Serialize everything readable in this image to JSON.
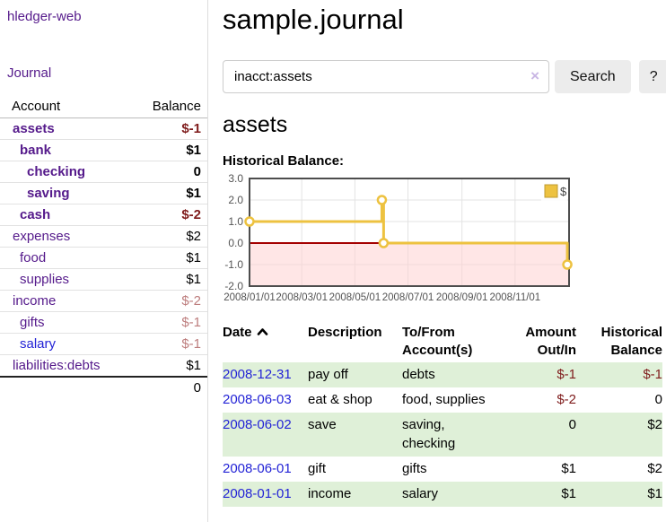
{
  "app": {
    "brand": "hledger-web",
    "nav_journal": "Journal"
  },
  "sidebar": {
    "accounts_table": {
      "col_account": "Account",
      "col_balance": "Balance",
      "rows": [
        {
          "name": "assets",
          "balance": "$-1",
          "depth": 1,
          "bold": true,
          "balance_tone": "neg",
          "link_tone": "purple"
        },
        {
          "name": "bank",
          "balance": "$1",
          "depth": 2,
          "bold": true,
          "balance_tone": "normal",
          "link_tone": "purple"
        },
        {
          "name": "checking",
          "balance": "0",
          "depth": 3,
          "bold": true,
          "balance_tone": "normal",
          "link_tone": "purple"
        },
        {
          "name": "saving",
          "balance": "$1",
          "depth": 3,
          "bold": true,
          "balance_tone": "normal",
          "link_tone": "purple"
        },
        {
          "name": "cash",
          "balance": "$-2",
          "depth": 2,
          "bold": true,
          "balance_tone": "neg",
          "link_tone": "purple"
        },
        {
          "name": "expenses",
          "balance": "$2",
          "depth": 1,
          "bold": false,
          "balance_tone": "normal",
          "link_tone": "purple"
        },
        {
          "name": "food",
          "balance": "$1",
          "depth": 2,
          "bold": false,
          "balance_tone": "normal",
          "link_tone": "purple"
        },
        {
          "name": "supplies",
          "balance": "$1",
          "depth": 2,
          "bold": false,
          "balance_tone": "normal",
          "link_tone": "purple"
        },
        {
          "name": "income",
          "balance": "$-2",
          "depth": 1,
          "bold": false,
          "balance_tone": "softneg",
          "link_tone": "purple"
        },
        {
          "name": "gifts",
          "balance": "$-1",
          "depth": 2,
          "bold": false,
          "balance_tone": "softneg",
          "link_tone": "purple"
        },
        {
          "name": "salary",
          "balance": "$-1",
          "depth": 2,
          "bold": false,
          "balance_tone": "softneg",
          "link_tone": "blue"
        },
        {
          "name": "liabilities:debts",
          "balance": "$1",
          "depth": 1,
          "bold": false,
          "balance_tone": "normal",
          "link_tone": "purple"
        }
      ],
      "total": "0"
    }
  },
  "main": {
    "title": "sample.journal",
    "search": {
      "value": "inacct:assets",
      "clear_icon": "×",
      "search_label": "Search",
      "help_label": "?"
    },
    "account_heading": "assets",
    "chart_label": "Historical Balance:",
    "register_table": {
      "headers": {
        "date": "Date",
        "description": "Description",
        "accounts_line1": "To/From",
        "accounts_line2": "Account(s)",
        "amount_line1": "Amount",
        "amount_line2": "Out/In",
        "balance_line1": "Historical",
        "balance_line2": "Balance"
      },
      "sort": "date-ascending",
      "rows": [
        {
          "date": "2008-12-31",
          "description": "pay off",
          "accounts": "debts",
          "amount": "$-1",
          "amount_tone": "neg",
          "balance": "$-1",
          "balance_tone": "neg",
          "shaded": true
        },
        {
          "date": "2008-06-03",
          "description": "eat & shop",
          "accounts": "food, supplies",
          "amount": "$-2",
          "amount_tone": "neg",
          "balance": "0",
          "balance_tone": "normal",
          "shaded": false
        },
        {
          "date": "2008-06-02",
          "description": "save",
          "accounts": "saving, checking",
          "amount": "0",
          "amount_tone": "normal",
          "balance": "$2",
          "balance_tone": "normal",
          "shaded": true
        },
        {
          "date": "2008-06-01",
          "description": "gift",
          "accounts": "gifts",
          "amount": "$1",
          "amount_tone": "normal",
          "balance": "$2",
          "balance_tone": "normal",
          "shaded": false
        },
        {
          "date": "2008-01-01",
          "description": "income",
          "accounts": "salary",
          "amount": "$1",
          "amount_tone": "normal",
          "balance": "$1",
          "balance_tone": "normal",
          "shaded": true
        }
      ]
    }
  },
  "chart_data": {
    "type": "step-line",
    "title": "Historical Balance:",
    "x_range": [
      "2008-01-01",
      "2009-01-02"
    ],
    "ylim": [
      -2,
      3
    ],
    "y_ticks": [
      {
        "label": "3.0",
        "value": 3
      },
      {
        "label": "2.0",
        "value": 2
      },
      {
        "label": "1.0",
        "value": 1
      },
      {
        "label": "0.0",
        "value": 0
      },
      {
        "label": "-1.0",
        "value": -1
      },
      {
        "label": "-2.0",
        "value": -2
      }
    ],
    "x_ticks": [
      {
        "label": "2008/01/01",
        "date": "2008-01-01"
      },
      {
        "label": "2008/03/01",
        "date": "2008-03-01"
      },
      {
        "label": "2008/05/01",
        "date": "2008-05-01"
      },
      {
        "label": "2008/07/01",
        "date": "2008-07-01"
      },
      {
        "label": "2008/09/01",
        "date": "2008-09-01"
      },
      {
        "label": "2008/11/01",
        "date": "2008-11-01"
      }
    ],
    "series": [
      {
        "name": "$",
        "color": "#edc240",
        "points": [
          {
            "date": "2008-01-01",
            "value": 1
          },
          {
            "date": "2008-06-01",
            "value": 2
          },
          {
            "date": "2008-06-03",
            "value": 0
          },
          {
            "date": "2008-12-31",
            "value": -1
          }
        ]
      }
    ],
    "grid": {
      "on": true,
      "line_color": "#e3e3e3",
      "border_color": "#4d4d4d",
      "zero_line_color": "#a40000",
      "negative_fill": "#ffd2d2",
      "tick_color": "#545454",
      "legend_position": "top-right"
    }
  }
}
